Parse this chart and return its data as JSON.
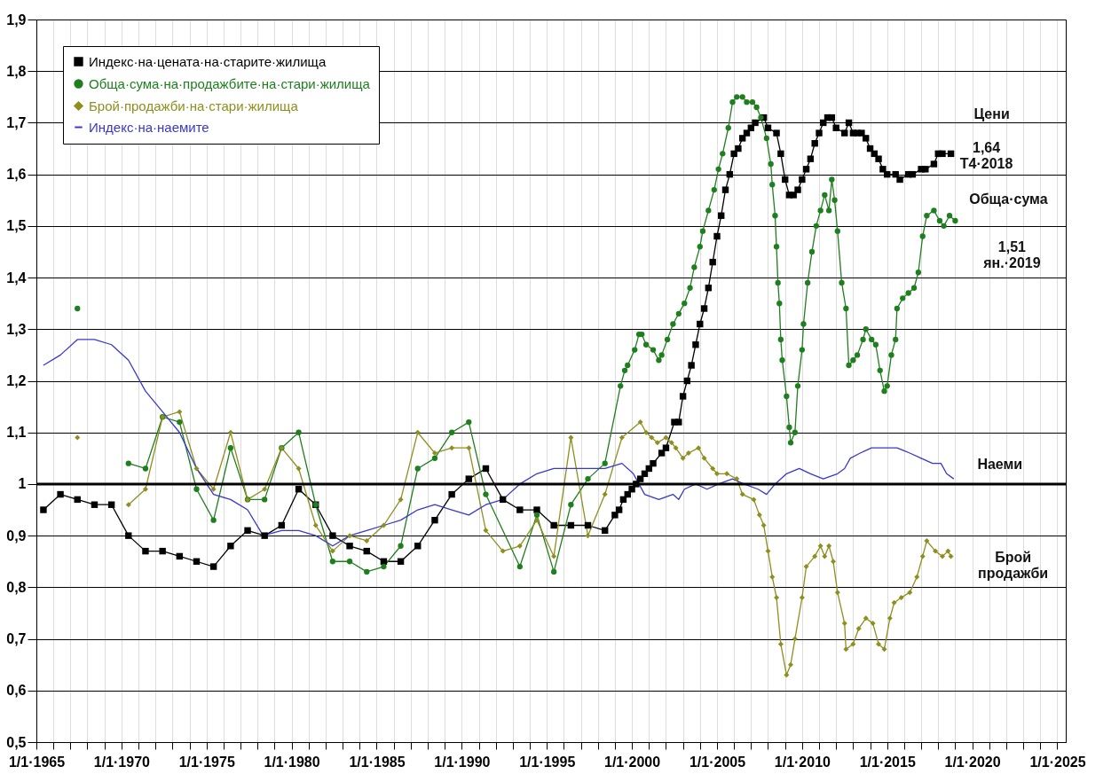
{
  "chart_data": {
    "type": "line",
    "xlim": [
      "1965-01-01",
      "2025-07-01"
    ],
    "ylim": [
      0.5,
      1.9
    ],
    "xticks": [
      {
        "value": "1965-01-01",
        "label": "1/1·1965"
      },
      {
        "value": "1966-01-01",
        "label": null
      },
      {
        "value": "1967-01-01",
        "label": null
      },
      {
        "value": "1968-01-01",
        "label": null
      },
      {
        "value": "1969-01-01",
        "label": null
      },
      {
        "value": "1970-01-01",
        "label": "1/1·1970"
      },
      {
        "value": "1971-01-01",
        "label": null
      },
      {
        "value": "1972-01-01",
        "label": null
      },
      {
        "value": "1973-01-01",
        "label": null
      },
      {
        "value": "1974-01-01",
        "label": null
      },
      {
        "value": "1975-01-01",
        "label": "1/1·1975"
      },
      {
        "value": "1976-01-01",
        "label": null
      },
      {
        "value": "1977-01-01",
        "label": null
      },
      {
        "value": "1978-01-01",
        "label": null
      },
      {
        "value": "1979-01-01",
        "label": null
      },
      {
        "value": "1980-01-01",
        "label": "1/1·1980"
      },
      {
        "value": "1981-01-01",
        "label": null
      },
      {
        "value": "1982-01-01",
        "label": null
      },
      {
        "value": "1983-01-01",
        "label": null
      },
      {
        "value": "1984-01-01",
        "label": null
      },
      {
        "value": "1985-01-01",
        "label": "1/1·1985"
      },
      {
        "value": "1986-01-01",
        "label": null
      },
      {
        "value": "1987-01-01",
        "label": null
      },
      {
        "value": "1988-01-01",
        "label": null
      },
      {
        "value": "1989-01-01",
        "label": null
      },
      {
        "value": "1990-01-01",
        "label": "1/1·1990"
      },
      {
        "value": "1991-01-01",
        "label": null
      },
      {
        "value": "1992-01-01",
        "label": null
      },
      {
        "value": "1993-01-01",
        "label": null
      },
      {
        "value": "1994-01-01",
        "label": null
      },
      {
        "value": "1995-01-01",
        "label": "1/1·1995"
      },
      {
        "value": "1996-01-01",
        "label": null
      },
      {
        "value": "1997-01-01",
        "label": null
      },
      {
        "value": "1998-01-01",
        "label": null
      },
      {
        "value": "1999-01-01",
        "label": null
      },
      {
        "value": "2000-01-01",
        "label": "1/1·2000"
      },
      {
        "value": "2001-01-01",
        "label": null
      },
      {
        "value": "2002-01-01",
        "label": null
      },
      {
        "value": "2003-01-01",
        "label": null
      },
      {
        "value": "2004-01-01",
        "label": null
      },
      {
        "value": "2005-01-01",
        "label": "1/1·2005"
      },
      {
        "value": "2006-01-01",
        "label": null
      },
      {
        "value": "2007-01-01",
        "label": null
      },
      {
        "value": "2008-01-01",
        "label": null
      },
      {
        "value": "2009-01-01",
        "label": null
      },
      {
        "value": "2010-01-01",
        "label": "1/1·2010"
      },
      {
        "value": "2011-01-01",
        "label": null
      },
      {
        "value": "2012-01-01",
        "label": null
      },
      {
        "value": "2013-01-01",
        "label": null
      },
      {
        "value": "2014-01-01",
        "label": null
      },
      {
        "value": "2015-01-01",
        "label": "1/1·2015"
      },
      {
        "value": "2016-01-01",
        "label": null
      },
      {
        "value": "2017-01-01",
        "label": null
      },
      {
        "value": "2018-01-01",
        "label": null
      },
      {
        "value": "2019-01-01",
        "label": null
      },
      {
        "value": "2020-01-01",
        "label": "1/1·2020"
      },
      {
        "value": "2021-01-01",
        "label": null
      },
      {
        "value": "2022-01-01",
        "label": null
      },
      {
        "value": "2023-01-01",
        "label": null
      },
      {
        "value": "2024-01-01",
        "label": null
      },
      {
        "value": "2025-01-01",
        "label": "1/1·2025"
      }
    ],
    "yticks": [
      {
        "value": 0.5,
        "label": "0,5"
      },
      {
        "value": 0.6,
        "label": "0,6"
      },
      {
        "value": 0.7,
        "label": "0,7"
      },
      {
        "value": 0.8,
        "label": "0,8"
      },
      {
        "value": 0.9,
        "label": "0,9"
      },
      1,
      {
        "value": 1.1,
        "label": "1,1"
      },
      {
        "value": 1.2,
        "label": "1,2"
      },
      {
        "value": 1.3,
        "label": "1,3"
      },
      {
        "value": 1.4,
        "label": "1,4"
      },
      {
        "value": 1.5,
        "label": "1,5"
      },
      {
        "value": 1.6,
        "label": "1,6"
      },
      {
        "value": 1.7,
        "label": "1,7"
      },
      {
        "value": 1.8,
        "label": "1,8"
      },
      {
        "value": 1.9,
        "label": "1,9"
      }
    ],
    "grid": true,
    "legend": "top left",
    "series": [
      {
        "name": "Индекс·на·цената·на·старите·жилища",
        "color": "#000000",
        "marker": "square",
        "x": [
          "1965-06",
          "1966-06",
          "1967-06",
          "1968-06",
          "1969-06",
          "1970-06",
          "1971-06",
          "1972-06",
          "1973-06",
          "1974-06",
          "1975-06",
          "1976-06",
          "1977-06",
          "1978-06",
          "1979-06",
          "1980-06",
          "1981-06",
          "1982-06",
          "1983-06",
          "1984-06",
          "1985-06",
          "1986-06",
          "1987-06",
          "1988-06",
          "1989-06",
          "1990-06",
          "1991-06",
          "1992-06",
          "1993-06",
          "1994-06",
          "1995-06",
          "1996-06",
          "1997-06",
          "1998-06",
          "1999-01",
          "1999-04",
          "1999-07",
          "1999-10",
          "2000-01",
          "2000-04",
          "2000-07",
          "2000-10",
          "2001-01",
          "2001-04",
          "2001-10",
          "2002-01",
          "2002-07",
          "2002-10",
          "2003-01",
          "2003-04",
          "2003-07",
          "2003-10",
          "2004-01",
          "2004-04",
          "2004-07",
          "2004-10",
          "2005-01",
          "2005-04",
          "2005-07",
          "2005-10",
          "2006-01",
          "2006-04",
          "2006-07",
          "2006-10",
          "2007-01",
          "2007-04",
          "2007-10",
          "2008-01",
          "2008-07",
          "2008-10",
          "2009-01",
          "2009-04",
          "2009-07",
          "2009-10",
          "2010-01",
          "2010-04",
          "2010-07",
          "2010-10",
          "2011-01",
          "2011-04",
          "2011-07",
          "2011-10",
          "2012-01",
          "2012-07",
          "2012-10",
          "2013-01",
          "2013-04",
          "2013-07",
          "2013-10",
          "2014-01",
          "2014-04",
          "2014-07",
          "2014-10",
          "2015-01",
          "2015-07",
          "2015-10",
          "2016-04",
          "2016-07",
          "2017-01",
          "2017-04",
          "2017-10",
          "2018-01",
          "2018-04",
          "2018-10"
        ],
        "values": [
          0.95,
          0.98,
          0.97,
          0.96,
          0.96,
          0.9,
          0.87,
          0.87,
          0.86,
          0.85,
          0.84,
          0.88,
          0.91,
          0.9,
          0.92,
          0.99,
          0.96,
          0.9,
          0.88,
          0.87,
          0.85,
          0.85,
          0.88,
          0.93,
          0.98,
          1.01,
          1.03,
          0.97,
          0.95,
          0.95,
          0.92,
          0.92,
          0.92,
          0.91,
          0.94,
          0.95,
          0.97,
          0.98,
          0.99,
          1.0,
          1.01,
          1.02,
          1.03,
          1.04,
          1.06,
          1.07,
          1.12,
          1.12,
          1.17,
          1.2,
          1.23,
          1.27,
          1.31,
          1.34,
          1.38,
          1.43,
          1.48,
          1.52,
          1.57,
          1.6,
          1.64,
          1.65,
          1.67,
          1.68,
          1.69,
          1.7,
          1.71,
          1.69,
          1.68,
          1.64,
          1.59,
          1.56,
          1.56,
          1.57,
          1.59,
          1.61,
          1.63,
          1.66,
          1.68,
          1.7,
          1.71,
          1.71,
          1.69,
          1.68,
          1.7,
          1.68,
          1.68,
          1.68,
          1.67,
          1.65,
          1.64,
          1.63,
          1.61,
          1.6,
          1.6,
          1.59,
          1.6,
          1.6,
          1.61,
          1.61,
          1.62,
          1.64,
          1.64,
          1.64
        ]
      },
      {
        "name": "Обща·сума·на·продажбите·на·стари·жилища",
        "color": "#1f7f1f",
        "marker": "circle",
        "x": [
          "1967-06",
          "1968-06",
          "1970-06",
          "1971-06",
          "1972-06",
          "1973-06",
          "1974-06",
          "1975-06",
          "1976-06",
          "1977-06",
          "1978-06",
          "1979-06",
          "1980-06",
          "1981-06",
          "1982-06",
          "1983-06",
          "1984-06",
          "1985-06",
          "1986-06",
          "1987-06",
          "1988-06",
          "1989-06",
          "1990-06",
          "1991-06",
          "1993-06",
          "1994-06",
          "1995-06",
          "1996-06",
          "1997-06",
          "1998-06",
          "1999-05",
          "1999-08",
          "1999-10",
          "2000-03",
          "2000-06",
          "2000-08",
          "2000-11",
          "2001-04",
          "2001-08",
          "2001-10",
          "2002-02",
          "2002-06",
          "2002-10",
          "2003-02",
          "2003-06",
          "2003-09",
          "2004-01",
          "2004-03",
          "2004-07",
          "2004-11",
          "2005-02",
          "2005-05",
          "2005-09",
          "2005-12",
          "2006-03",
          "2006-07",
          "2006-10",
          "2007-02",
          "2007-05",
          "2007-08",
          "2007-12",
          "2008-03",
          "2008-04",
          "2008-06",
          "2008-07",
          "2008-08",
          "2008-09",
          "2008-10",
          "2008-11",
          "2009-02",
          "2009-04",
          "2009-05",
          "2009-08",
          "2009-10",
          "2010-01",
          "2010-02",
          "2010-05",
          "2010-08",
          "2010-11",
          "2011-02",
          "2011-05",
          "2011-08",
          "2011-10",
          "2011-12",
          "2012-02",
          "2012-05",
          "2012-08",
          "2012-10",
          "2013-01",
          "2013-04",
          "2013-08",
          "2013-10",
          "2014-02",
          "2014-05",
          "2014-08",
          "2014-11",
          "2015-01",
          "2015-04",
          "2015-07",
          "2015-08",
          "2015-12",
          "2016-04",
          "2016-08",
          "2016-11",
          "2017-02",
          "2017-05",
          "2017-10",
          "2018-02",
          "2018-05",
          "2018-09",
          "2019-01"
        ],
        "values": [
          1.34,
          null,
          1.04,
          1.03,
          1.13,
          1.12,
          0.99,
          0.93,
          1.07,
          0.97,
          0.97,
          1.07,
          1.1,
          0.96,
          0.85,
          0.85,
          0.83,
          0.84,
          0.88,
          1.03,
          1.05,
          1.1,
          1.12,
          0.98,
          0.84,
          0.94,
          0.83,
          0.96,
          1.01,
          1.04,
          1.19,
          1.22,
          1.23,
          1.26,
          1.29,
          1.29,
          1.27,
          1.26,
          1.24,
          1.25,
          1.28,
          1.31,
          1.33,
          1.35,
          1.38,
          1.42,
          1.46,
          1.49,
          1.53,
          1.57,
          1.61,
          1.64,
          1.69,
          1.74,
          1.75,
          1.75,
          1.74,
          1.74,
          1.73,
          1.71,
          1.67,
          1.62,
          1.58,
          1.52,
          1.46,
          1.39,
          1.35,
          1.28,
          1.24,
          1.17,
          1.11,
          1.08,
          1.1,
          1.19,
          1.26,
          1.31,
          1.39,
          1.45,
          1.5,
          1.53,
          1.56,
          1.53,
          1.59,
          1.55,
          1.49,
          1.39,
          1.34,
          1.23,
          1.24,
          1.25,
          1.28,
          1.3,
          1.28,
          1.27,
          1.22,
          1.18,
          1.19,
          1.25,
          1.28,
          1.34,
          1.36,
          1.37,
          1.38,
          1.41,
          1.48,
          1.52,
          1.53,
          1.51,
          1.5,
          1.52,
          1.51
        ]
      },
      {
        "name": "Брой·продажби·на·стари·жилища",
        "color": "#8f8f1f",
        "marker": "diamond",
        "x": [
          "1967-06",
          "1968-06",
          "1970-06",
          "1971-06",
          "1972-06",
          "1973-06",
          "1974-06",
          "1975-06",
          "1976-06",
          "1977-06",
          "1978-06",
          "1979-06",
          "1980-06",
          "1981-06",
          "1982-06",
          "1983-06",
          "1984-06",
          "1985-06",
          "1986-06",
          "1987-06",
          "1988-06",
          "1989-06",
          "1990-06",
          "1991-06",
          "1992-06",
          "1993-06",
          "1994-06",
          "1995-06",
          "1996-06",
          "1997-06",
          "1998-06",
          "1999-06",
          "2000-07",
          "2000-11",
          "2001-03",
          "2001-07",
          "2002-01",
          "2002-05",
          "2002-08",
          "2003-01",
          "2003-05",
          "2003-12",
          "2004-04",
          "2004-10",
          "2005-01",
          "2005-08",
          "2006-03",
          "2006-07",
          "2007-03",
          "2007-07",
          "2007-10",
          "2008-01",
          "2008-04",
          "2008-07",
          "2008-10",
          "2009-02",
          "2009-05",
          "2009-08",
          "2010-01",
          "2010-04",
          "2010-10",
          "2011-02",
          "2011-05",
          "2011-08",
          "2011-11",
          "2012-02",
          "2012-07",
          "2012-08",
          "2013-01",
          "2013-05",
          "2013-10",
          "2014-03",
          "2014-07",
          "2014-11",
          "2015-03",
          "2015-06",
          "2015-11",
          "2016-05",
          "2016-10",
          "2017-02",
          "2017-05",
          "2017-11",
          "2018-04",
          "2018-08",
          "2018-10"
        ],
        "values": [
          1.09,
          null,
          0.96,
          0.99,
          1.13,
          1.14,
          1.03,
          0.99,
          1.1,
          0.97,
          0.99,
          1.07,
          1.03,
          0.92,
          0.87,
          0.9,
          0.89,
          0.92,
          0.97,
          1.1,
          1.06,
          1.07,
          1.07,
          0.91,
          0.87,
          0.88,
          0.93,
          0.86,
          1.09,
          0.9,
          0.98,
          1.09,
          1.12,
          1.1,
          1.09,
          1.08,
          1.09,
          1.08,
          1.07,
          1.05,
          1.06,
          1.07,
          1.05,
          1.03,
          1.02,
          1.02,
          1.01,
          0.98,
          0.97,
          0.94,
          0.92,
          0.87,
          0.82,
          0.78,
          0.69,
          0.63,
          0.65,
          0.7,
          0.78,
          0.84,
          0.86,
          0.88,
          0.86,
          0.88,
          0.85,
          0.79,
          0.73,
          0.68,
          0.69,
          0.72,
          0.74,
          0.73,
          0.69,
          0.68,
          0.74,
          0.77,
          0.78,
          0.79,
          0.82,
          0.86,
          0.89,
          0.87,
          0.86,
          0.87,
          0.86
        ]
      },
      {
        "name": "Индекс·на·наемите",
        "color": "#3838d0",
        "marker": "none",
        "x": [
          "1965-06",
          "1966-06",
          "1967-06",
          "1968-06",
          "1969-06",
          "1970-06",
          "1971-06",
          "1972-06",
          "1973-06",
          "1974-06",
          "1975-06",
          "1976-06",
          "1977-06",
          "1978-05",
          "1979-06",
          "1980-06",
          "1981-06",
          "1982-06",
          "1983-06",
          "1984-06",
          "1985-06",
          "1986-06",
          "1987-06",
          "1988-06",
          "1989-06",
          "1990-06",
          "1991-06",
          "1992-06",
          "1993-06",
          "1994-06",
          "1995-06",
          "1996-06",
          "1997-06",
          "1998-06",
          "1999-06",
          "2000-02",
          "2000-10",
          "2001-08",
          "2002-06",
          "2002-10",
          "2003-02",
          "2003-10",
          "2004-06",
          "2005-02",
          "2005-12",
          "2006-08",
          "2007-06",
          "2007-12",
          "2008-06",
          "2009-02",
          "2009-11",
          "2010-07",
          "2011-04",
          "2012-02",
          "2012-07",
          "2012-11",
          "2013-06",
          "2014-02",
          "2015-02",
          "2015-08",
          "2016-05",
          "2017-01",
          "2017-09",
          "2018-03",
          "2018-07",
          "2018-12"
        ],
        "values": [
          1.23,
          1.25,
          1.28,
          1.28,
          1.27,
          1.24,
          1.18,
          1.14,
          1.1,
          1.03,
          0.98,
          0.97,
          0.95,
          0.9,
          0.91,
          0.91,
          0.9,
          0.88,
          0.9,
          0.91,
          0.92,
          0.93,
          0.95,
          0.96,
          0.95,
          0.94,
          0.96,
          0.97,
          1.0,
          1.02,
          1.03,
          1.03,
          1.03,
          1.03,
          1.04,
          1.02,
          0.98,
          0.97,
          0.98,
          0.97,
          0.99,
          1.0,
          0.99,
          1.0,
          1.01,
          1.0,
          0.99,
          0.98,
          1.0,
          1.02,
          1.03,
          1.02,
          1.01,
          1.02,
          1.03,
          1.05,
          1.06,
          1.07,
          1.07,
          1.07,
          1.06,
          1.05,
          1.04,
          1.04,
          1.02,
          1.01
        ]
      }
    ],
    "ref_lines": [
      {
        "axis": "y",
        "value": 1,
        "color": "#000000"
      }
    ],
    "annotations": [
      {
        "text": "Цени",
        "x": "2018-10",
        "y": 1.64
      },
      {
        "text": "1,64\nТ4·2018",
        "x": "2018-10",
        "y": 1.64
      },
      {
        "text": "Обща·сума",
        "x": "2019-01",
        "y": 1.51
      },
      {
        "text": "1,51\nян.·2019",
        "x": "2019-01",
        "y": 1.51
      },
      {
        "text": "Наеми",
        "x": "2018-12",
        "y": 1.01
      },
      {
        "text": "Брой\nпродажби",
        "x": "2018-10",
        "y": 0.86
      }
    ]
  }
}
